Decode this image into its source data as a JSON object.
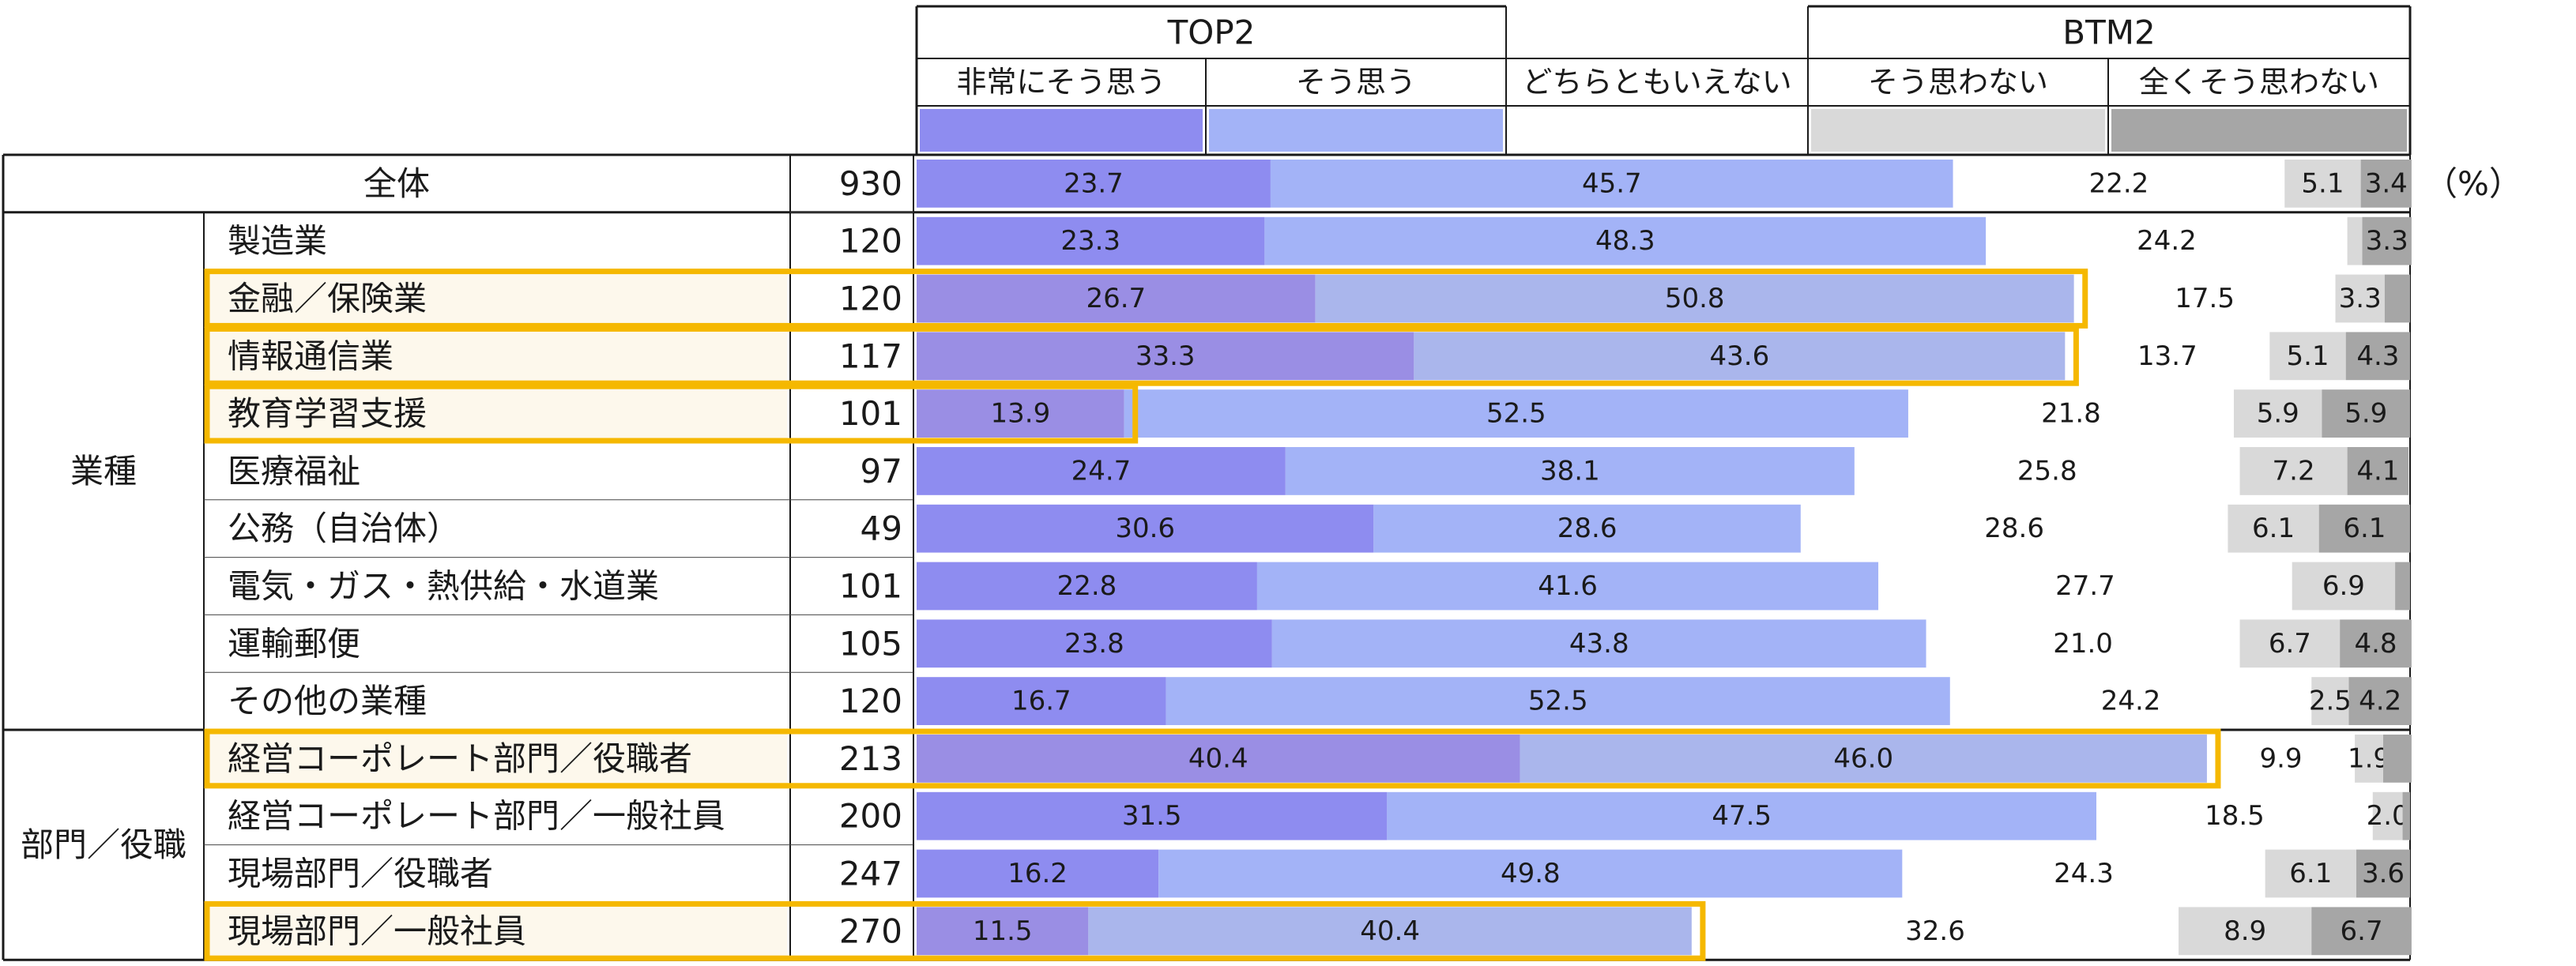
{
  "chart_data": {
    "type": "bar",
    "stacked": true,
    "orientation": "horizontal",
    "unit": "（%）",
    "overall_label": "全体",
    "group_headers": [
      {
        "label": "TOP2"
      },
      {
        "label": "BTM2"
      }
    ],
    "series": [
      {
        "name": "非常にそう思う",
        "color": "#8e8cf0"
      },
      {
        "name": "そう思う",
        "color": "#a3b3f7"
      },
      {
        "name": "どちらともいえない",
        "color": "#ffffff"
      },
      {
        "name": "そう思わない",
        "color": "#d9d9d9"
      },
      {
        "name": "全くそう思わない",
        "color": "#a6a6a6"
      }
    ],
    "highlight_colors": {
      "strong": "#9a8ee4",
      "agree": "#aab6ec",
      "row_bg": "#fdf8ec",
      "frame": "#f5b800"
    },
    "groups": [
      {
        "label": "業種"
      },
      {
        "label": "部門／役職"
      }
    ],
    "rows": [
      {
        "category": "全体",
        "n": "930",
        "values": [
          23.7,
          45.7,
          22.2,
          5.1,
          3.4
        ],
        "labels": [
          "23.7",
          "45.7",
          "22.2",
          "5.1",
          "3.4"
        ],
        "group": -1,
        "highlight": ""
      },
      {
        "category": "製造業",
        "n": "120",
        "values": [
          23.3,
          48.3,
          24.2,
          1.0,
          3.3
        ],
        "labels": [
          "23.3",
          "48.3",
          "24.2",
          "",
          "3.3"
        ],
        "group": 0,
        "highlight": ""
      },
      {
        "category": "金融／保険業",
        "n": "120",
        "values": [
          26.7,
          50.8,
          17.5,
          3.3,
          1.7
        ],
        "labels": [
          "26.7",
          "50.8",
          "17.5",
          "3.3",
          ""
        ],
        "group": 0,
        "highlight": "top2"
      },
      {
        "category": "情報通信業",
        "n": "117",
        "values": [
          33.3,
          43.6,
          13.7,
          5.1,
          4.3
        ],
        "labels": [
          "33.3",
          "43.6",
          "13.7",
          "5.1",
          "4.3"
        ],
        "group": 0,
        "highlight": "top2"
      },
      {
        "category": "教育学習支援",
        "n": "101",
        "values": [
          13.9,
          52.5,
          21.8,
          5.9,
          5.9
        ],
        "labels": [
          "13.9",
          "52.5",
          "21.8",
          "5.9",
          "5.9"
        ],
        "group": 0,
        "highlight": "top1"
      },
      {
        "category": "医療福祉",
        "n": "97",
        "values": [
          24.7,
          38.1,
          25.8,
          7.2,
          4.1
        ],
        "labels": [
          "24.7",
          "38.1",
          "25.8",
          "7.2",
          "4.1"
        ],
        "group": 0,
        "highlight": ""
      },
      {
        "category": "公務（自治体）",
        "n": "49",
        "values": [
          30.6,
          28.6,
          28.6,
          6.1,
          6.1
        ],
        "labels": [
          "30.6",
          "28.6",
          "28.6",
          "6.1",
          "6.1"
        ],
        "group": 0,
        "highlight": ""
      },
      {
        "category": "電気・ガス・熱供給・水道業",
        "n": "101",
        "values": [
          22.8,
          41.6,
          27.7,
          6.9,
          1.0
        ],
        "labels": [
          "22.8",
          "41.6",
          "27.7",
          "6.9",
          ""
        ],
        "group": 0,
        "highlight": ""
      },
      {
        "category": "運輸郵便",
        "n": "105",
        "values": [
          23.8,
          43.8,
          21.0,
          6.7,
          4.8
        ],
        "labels": [
          "23.8",
          "43.8",
          "21.0",
          "6.7",
          "4.8"
        ],
        "group": 0,
        "highlight": ""
      },
      {
        "category": "その他の業種",
        "n": "120",
        "values": [
          16.7,
          52.5,
          24.2,
          2.5,
          4.2
        ],
        "labels": [
          "16.7",
          "52.5",
          "24.2",
          "2.5",
          "4.2"
        ],
        "group": 0,
        "highlight": ""
      },
      {
        "category": "経営コーポレート部門／役職者",
        "n": "213",
        "values": [
          40.4,
          46.0,
          9.9,
          1.9,
          1.9
        ],
        "labels": [
          "40.4",
          "46.0",
          "9.9",
          "1.9",
          ""
        ],
        "group": 1,
        "highlight": "top2"
      },
      {
        "category": "経営コーポレート部門／一般社員",
        "n": "200",
        "values": [
          31.5,
          47.5,
          18.5,
          2.0,
          0.5
        ],
        "labels": [
          "31.5",
          "47.5",
          "18.5",
          "2.0",
          ""
        ],
        "group": 1,
        "highlight": ""
      },
      {
        "category": "現場部門／役職者",
        "n": "247",
        "values": [
          16.2,
          49.8,
          24.3,
          6.1,
          3.6
        ],
        "labels": [
          "16.2",
          "49.8",
          "24.3",
          "6.1",
          "3.6"
        ],
        "group": 1,
        "highlight": ""
      },
      {
        "category": "現場部門／一般社員",
        "n": "270",
        "values": [
          11.5,
          40.4,
          32.6,
          8.9,
          6.7
        ],
        "labels": [
          "11.5",
          "40.4",
          "32.6",
          "8.9",
          "6.7"
        ],
        "group": 1,
        "highlight": "top2"
      }
    ]
  }
}
